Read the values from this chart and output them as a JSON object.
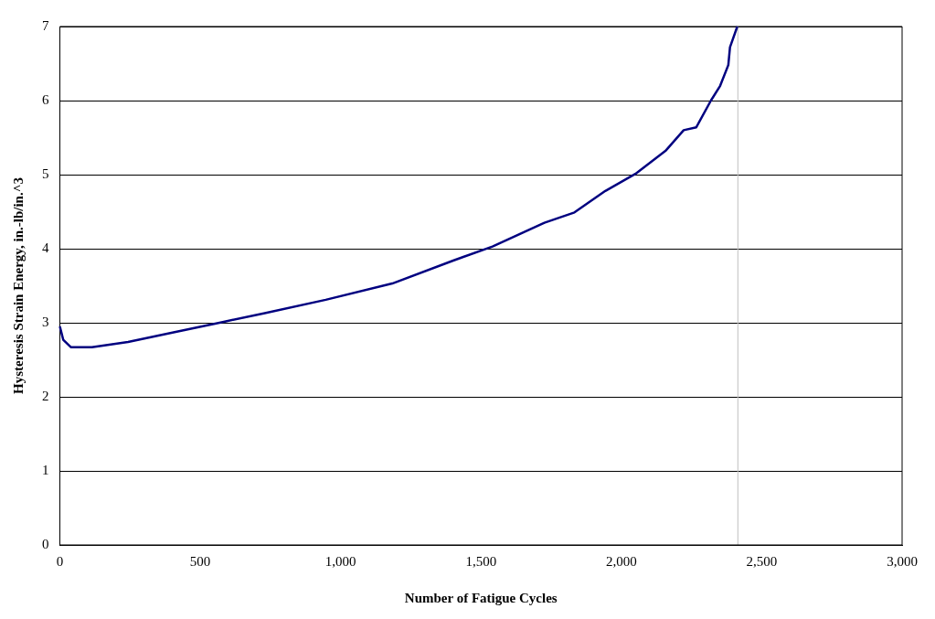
{
  "chart_data": {
    "type": "line",
    "xlabel": "Number of Fatigue Cycles",
    "ylabel": "Hysteresis Strain Energy, in.-lb/in.^3",
    "series": [
      {
        "color": "#000080",
        "x": [
          0,
          12,
          39,
          114,
          243,
          405,
          580,
          730,
          947,
          1184,
          1401,
          1541,
          1726,
          1833,
          1943,
          2050,
          2157,
          2222,
          2267,
          2319,
          2352,
          2381,
          2387,
          2413
        ],
        "values": [
          2.95,
          2.77,
          2.67,
          2.67,
          2.74,
          2.87,
          3.01,
          3.13,
          3.31,
          3.53,
          3.84,
          4.03,
          4.35,
          4.49,
          4.78,
          5.01,
          5.32,
          5.6,
          5.64,
          6.0,
          6.2,
          6.48,
          6.72,
          7.0
        ]
      }
    ],
    "xlim": [
      0,
      3000
    ],
    "xticks": [
      {
        "value": 0,
        "label": "0"
      },
      {
        "value": 500,
        "label": "500"
      },
      {
        "value": 1000,
        "label": "1,000"
      },
      {
        "value": 1500,
        "label": "1,500"
      },
      {
        "value": 2000,
        "label": "2,000"
      },
      {
        "value": 2500,
        "label": "2,500"
      },
      {
        "value": 3000,
        "label": "3,000"
      }
    ],
    "ylim": [
      0,
      7
    ],
    "yticks": [
      0,
      1,
      2,
      3,
      4,
      5,
      6,
      7
    ],
    "ref_lines": [
      {
        "axis": "x",
        "value": 2415,
        "color": "#c0c0c0"
      }
    ],
    "grid": "y",
    "legend": false,
    "marker": "none",
    "line_style": "solid"
  }
}
